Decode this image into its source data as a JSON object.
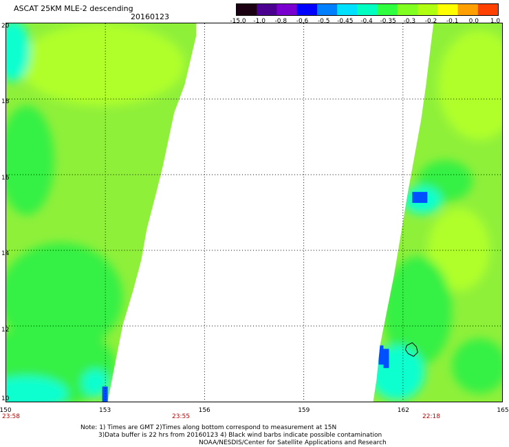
{
  "header": {
    "title": "ASCAT 25KM MLE-2 descending",
    "date": "20160123"
  },
  "colorbar": {
    "labels": [
      "-15.0",
      "-1.0",
      "-0.8",
      "-0.6",
      "-0.5",
      "-0.45",
      "-0.4",
      "-0.35",
      "-0.3",
      "-0.2",
      "-0.1",
      "0.0",
      "1.0"
    ],
    "colors": [
      "#1a0010",
      "#4b0090",
      "#7a00d0",
      "#0000ff",
      "#0080ff",
      "#00e0ff",
      "#00ffc0",
      "#30ff40",
      "#80ff20",
      "#b0ff10",
      "#ffff00",
      "#ffa000",
      "#ff4000"
    ]
  },
  "map": {
    "lon_range": [
      150,
      165
    ],
    "lat_range": [
      10,
      20
    ],
    "x_ticks": [
      "150",
      "153",
      "156",
      "159",
      "162",
      "165"
    ],
    "y_ticks": [
      "10",
      "12",
      "14",
      "16",
      "18",
      "20"
    ],
    "gridlines": "dotted",
    "time_labels": [
      "23:58",
      "23:55",
      "22:18"
    ],
    "field_colors": {
      "base": "#8ff03a",
      "green": "#35f045",
      "lime": "#b0ff2a",
      "cyan": "#10ffd0",
      "blue": "#0050ff",
      "white": "#ffffff"
    }
  },
  "notes": {
    "line1": "Note: 1) Times are GMT 2)Times along bottom correspond to measurement at 15N",
    "line2": "3)Data buffer is 22 hrs from 20160123 4) Black wind barbs indicate possible contamination",
    "line3": "NOAA/NESDIS/Center for Satellite Applications and Research"
  }
}
